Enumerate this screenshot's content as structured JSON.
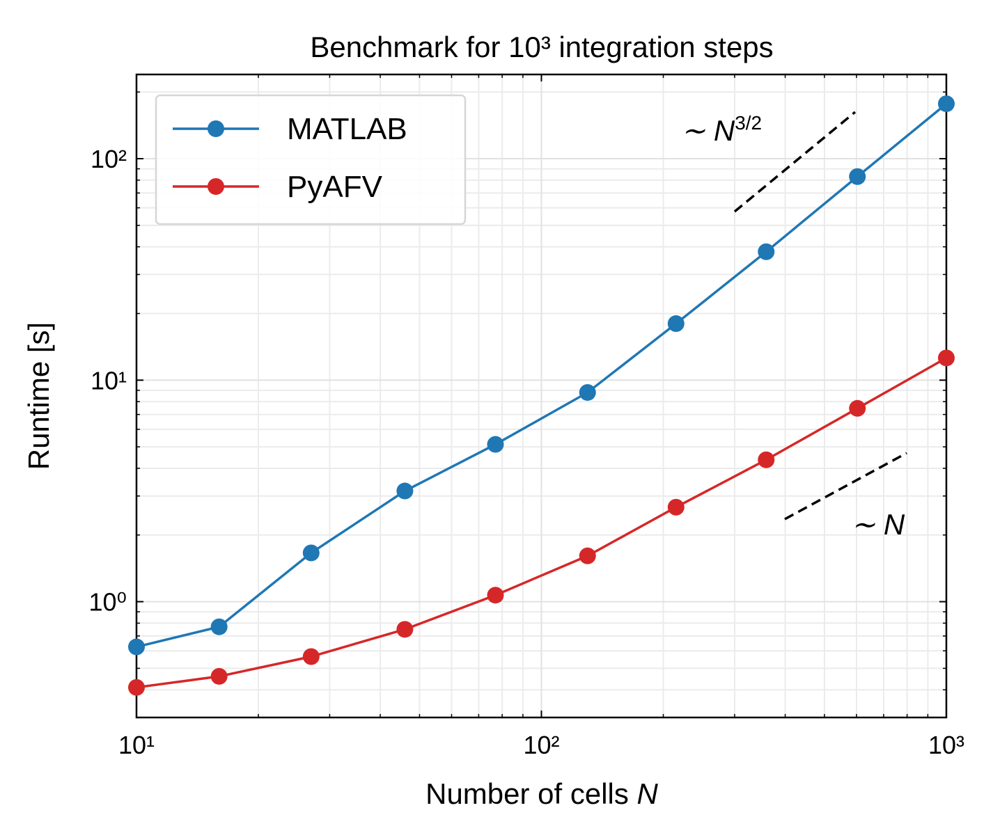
{
  "chart_data": {
    "type": "line",
    "title": "Benchmark for 10³ integration steps",
    "xlabel": "Number of cells",
    "xlabel_var": "N",
    "ylabel": "Runtime [s]",
    "x": [
      10,
      16,
      27,
      46,
      77,
      130,
      215,
      359,
      603,
      1000
    ],
    "series": [
      {
        "name": "MATLAB",
        "color": "#1f77b4",
        "values": [
          0.625,
          0.77,
          1.66,
          3.16,
          5.13,
          8.8,
          18.0,
          38,
          83,
          177
        ]
      },
      {
        "name": "PyAFV",
        "color": "#d62728",
        "values": [
          0.41,
          0.46,
          0.565,
          0.75,
          1.07,
          1.61,
          2.67,
          4.37,
          7.46,
          12.6
        ]
      }
    ],
    "log_x": true,
    "log_y": true,
    "xlim": [
      10,
      1000
    ],
    "ylim": [
      0.3,
      240
    ],
    "xticks": [
      {
        "value": 10,
        "label": "10¹"
      },
      {
        "value": 100,
        "label": "10²"
      },
      {
        "value": 1000,
        "label": "10³"
      }
    ],
    "yticks": [
      {
        "value": 1,
        "label": "10⁰"
      },
      {
        "value": 10,
        "label": "10¹"
      },
      {
        "value": 100,
        "label": "10²"
      }
    ],
    "xminorticks": [
      20,
      30,
      40,
      50,
      60,
      70,
      80,
      90,
      200,
      300,
      400,
      500,
      600,
      700,
      800,
      900
    ],
    "yminorticks": [
      0.3,
      0.4,
      0.5,
      0.6,
      0.7,
      0.8,
      0.9,
      2,
      3,
      4,
      5,
      6,
      7,
      8,
      9,
      20,
      30,
      40,
      50,
      60,
      70,
      80,
      90,
      200
    ],
    "grid": true,
    "legend": "upper left",
    "annotations": [
      {
        "text": "∼ N",
        "sup": "3/2"
      },
      {
        "text": "∼ N"
      }
    ]
  }
}
